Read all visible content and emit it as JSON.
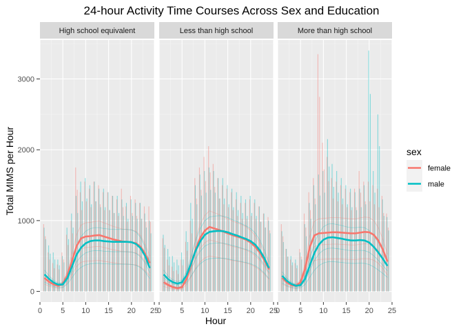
{
  "chart_data": {
    "type": "line",
    "title": "24-hour Activity Time Courses Across Sex and Education",
    "xlabel": "Hour",
    "ylabel": "Total MIMS per Hour",
    "xlim": [
      0,
      25
    ],
    "ylim": [
      -150,
      3550
    ],
    "x_ticks": [
      "0",
      "5",
      "10",
      "15",
      "20",
      "25"
    ],
    "y_ticks": [
      "0",
      "1000",
      "2000",
      "3000"
    ],
    "grid": true,
    "legend": {
      "title": "sex",
      "placement": "right",
      "entries": [
        {
          "label": "female",
          "color": "#F8766D"
        },
        {
          "label": "male",
          "color": "#00BFC4"
        }
      ]
    },
    "panels": [
      {
        "label": "High school equivalent",
        "smooth": {
          "x": [
            1,
            2,
            3,
            4,
            5,
            6,
            7,
            8,
            9,
            10,
            11,
            12,
            13,
            14,
            15,
            16,
            17,
            18,
            19,
            20,
            21,
            22,
            23,
            24
          ],
          "female": [
            190,
            135,
            100,
            80,
            110,
            230,
            430,
            640,
            750,
            775,
            780,
            790,
            795,
            775,
            755,
            735,
            720,
            705,
            700,
            695,
            680,
            630,
            530,
            400
          ],
          "male": [
            240,
            175,
            125,
            95,
            100,
            190,
            350,
            520,
            620,
            680,
            710,
            720,
            720,
            710,
            705,
            700,
            700,
            700,
            700,
            695,
            670,
            610,
            500,
            330
          ]
        },
        "spike_max": {
          "female": [
            950,
            550,
            400,
            380,
            550,
            800,
            1000,
            1750,
            1400,
            1550,
            1450,
            1550,
            1500,
            1400,
            1400,
            1350,
            1300,
            1450,
            1200,
            1350,
            1300,
            1250,
            1200,
            1200
          ],
          "male": [
            900,
            650,
            550,
            450,
            500,
            900,
            1100,
            1350,
            1550,
            1600,
            1500,
            1550,
            1450,
            1450,
            1400,
            1350,
            1350,
            1300,
            1250,
            1300,
            1250,
            1250,
            1100,
            1000
          ]
        }
      },
      {
        "label": "Less than high school",
        "smooth": {
          "x": [
            1,
            2,
            3,
            4,
            5,
            6,
            7,
            8,
            9,
            10,
            11,
            12,
            13,
            14,
            15,
            16,
            17,
            18,
            19,
            20,
            21,
            22,
            23,
            24
          ],
          "female": [
            130,
            90,
            60,
            45,
            60,
            180,
            380,
            600,
            760,
            860,
            910,
            890,
            870,
            845,
            820,
            795,
            775,
            755,
            730,
            690,
            630,
            550,
            440,
            310
          ],
          "male": [
            240,
            170,
            130,
            110,
            130,
            230,
            400,
            580,
            710,
            800,
            840,
            850,
            855,
            850,
            835,
            810,
            790,
            765,
            740,
            710,
            660,
            580,
            470,
            330
          ]
        },
        "spike_max": {
          "female": [
            750,
            450,
            350,
            300,
            450,
            700,
            1000,
            1600,
            1750,
            1900,
            2050,
            1800,
            1600,
            1500,
            1450,
            1400,
            1300,
            1250,
            1250,
            1300,
            1250,
            1200,
            1100,
            1050
          ],
          "male": [
            800,
            600,
            500,
            450,
            550,
            850,
            1250,
            1500,
            1650,
            1700,
            1750,
            1700,
            1600,
            1600,
            1500,
            1450,
            1400,
            1350,
            1300,
            1350,
            1300,
            1200,
            1100,
            1000
          ]
        }
      },
      {
        "label": "More than high school",
        "smooth": {
          "x": [
            1,
            2,
            3,
            4,
            5,
            6,
            7,
            8,
            9,
            10,
            11,
            12,
            13,
            14,
            15,
            16,
            17,
            18,
            19,
            20,
            21,
            22,
            23,
            24
          ],
          "female": [
            190,
            130,
            90,
            80,
            130,
            320,
            620,
            790,
            820,
            825,
            830,
            835,
            835,
            830,
            825,
            820,
            820,
            830,
            840,
            835,
            800,
            720,
            590,
            420
          ],
          "male": [
            220,
            150,
            105,
            80,
            90,
            180,
            360,
            540,
            660,
            730,
            760,
            765,
            755,
            745,
            730,
            720,
            720,
            725,
            720,
            690,
            630,
            550,
            460,
            360
          ]
        },
        "spike_max": {
          "female": [
            950,
            600,
            450,
            400,
            600,
            1100,
            1400,
            1600,
            3350,
            2100,
            1900,
            1600,
            1550,
            1500,
            1450,
            1400,
            1450,
            1700,
            1550,
            1550,
            1500,
            1450,
            1350,
            1100
          ],
          "male": [
            850,
            600,
            500,
            450,
            550,
            950,
            1250,
            1500,
            1650,
            1700,
            2150,
            1800,
            1700,
            1600,
            1500,
            1450,
            1400,
            1450,
            1500,
            3400,
            1700,
            2500,
            1300,
            1050
          ]
        }
      }
    ]
  }
}
